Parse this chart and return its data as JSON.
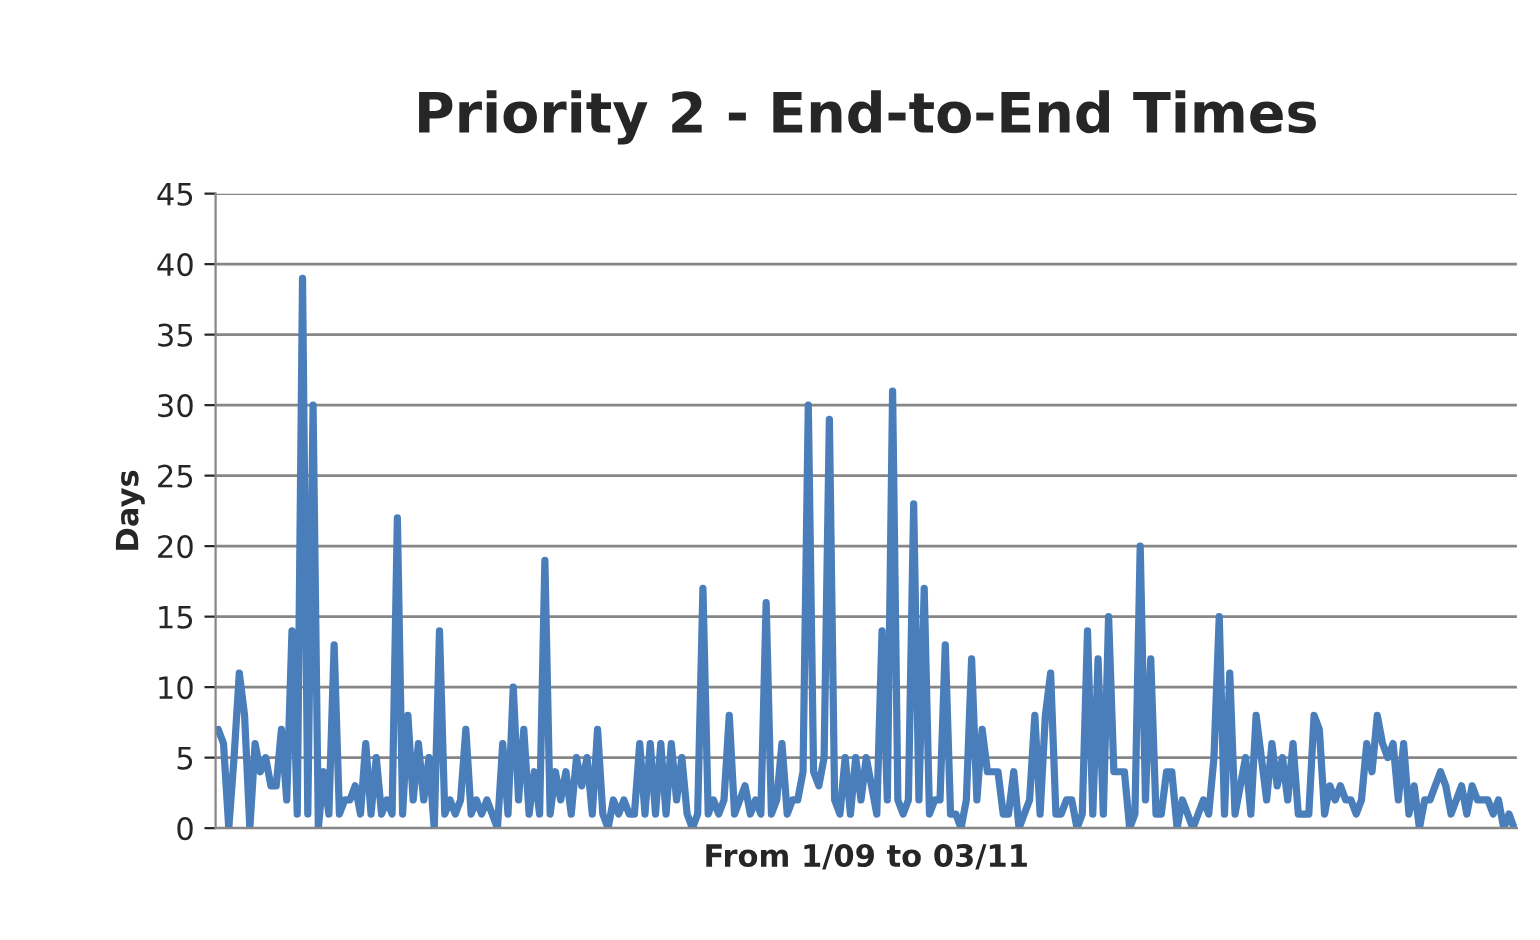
{
  "chart_data": {
    "type": "line",
    "title": "Priority 2 - End-to-End Times",
    "xlabel": "From 1/09 to 03/11",
    "ylabel": "Days",
    "ylim": [
      0,
      45
    ],
    "yticks": [
      0,
      5,
      10,
      15,
      20,
      25,
      30,
      35,
      40,
      45
    ],
    "grid": "y",
    "legend": false,
    "marker": "none",
    "line_style": "solid",
    "categories": [
      null,
      null,
      null,
      null,
      null,
      null,
      null,
      null,
      null,
      null,
      null,
      null,
      null,
      null,
      null,
      null,
      null,
      null,
      null,
      null,
      null,
      null,
      null,
      null,
      null,
      null,
      null,
      null,
      null,
      null,
      null,
      null,
      null,
      null,
      null,
      null,
      null,
      null,
      null,
      null,
      null,
      null,
      null,
      null,
      null,
      null,
      null,
      null,
      null,
      null,
      null,
      null,
      null,
      null,
      null,
      null,
      null,
      null,
      null,
      null,
      null,
      null,
      null,
      null,
      null,
      null,
      null,
      null,
      null,
      null,
      null,
      null,
      null,
      null,
      null,
      null,
      null,
      null,
      null,
      null,
      null,
      null,
      null,
      null,
      null,
      null,
      null,
      null,
      null,
      null,
      null,
      null,
      null,
      null,
      null,
      null,
      null,
      null,
      null,
      null,
      null,
      null,
      null,
      null,
      null,
      null,
      null,
      null,
      null,
      null,
      null,
      null,
      null,
      null,
      null,
      null,
      null,
      null,
      null,
      null,
      null,
      null,
      null,
      null,
      null,
      null,
      null,
      null,
      null,
      null,
      null,
      null,
      null,
      null,
      null,
      null,
      null,
      null,
      null,
      null,
      null,
      null,
      null,
      null,
      null,
      null,
      null,
      null,
      null,
      null,
      null,
      null,
      null,
      null,
      null,
      null,
      null,
      null,
      null,
      null,
      null,
      null,
      null,
      null,
      null,
      null,
      null,
      null,
      null,
      null,
      null,
      null,
      null,
      null,
      null,
      null,
      null,
      null,
      null,
      null,
      null,
      null,
      null,
      null,
      null,
      null,
      null,
      null,
      null,
      null,
      null,
      null,
      null,
      null,
      null,
      null,
      null,
      null,
      null,
      null,
      null,
      null,
      null,
      null,
      null,
      null,
      null,
      null,
      null,
      null,
      null,
      null,
      null,
      null,
      null,
      null,
      null,
      null,
      null,
      null,
      null,
      null,
      null,
      null,
      null,
      null,
      null,
      null,
      null,
      null,
      null,
      null,
      null,
      null,
      null,
      null,
      null,
      null,
      null,
      null,
      null,
      null,
      null,
      null,
      null,
      null,
      null
    ],
    "series": [
      {
        "color": "#4a7ebb",
        "values": [
          7,
          6,
          0,
          5,
          11,
          8,
          0,
          6,
          4,
          5,
          3,
          3,
          7,
          2,
          14,
          1,
          39,
          1,
          30,
          0,
          4,
          1,
          13,
          1,
          2,
          2,
          3,
          1,
          6,
          1,
          5,
          1,
          2,
          1,
          22,
          1,
          8,
          2,
          6,
          2,
          5,
          0,
          14,
          1,
          2,
          1,
          2,
          7,
          1,
          2,
          1,
          2,
          1,
          0,
          6,
          1,
          10,
          2,
          7,
          1,
          4,
          1,
          19,
          1,
          4,
          2,
          4,
          1,
          5,
          3,
          5,
          1,
          7,
          1,
          0,
          2,
          1,
          2,
          1,
          1,
          6,
          1,
          6,
          1,
          6,
          1,
          6,
          2,
          5,
          1,
          0,
          1,
          17,
          1,
          2,
          1,
          2,
          8,
          1,
          2,
          3,
          1,
          2,
          1,
          16,
          1,
          2,
          6,
          1,
          2,
          2,
          4,
          30,
          4,
          3,
          5,
          29,
          2,
          1,
          5,
          1,
          5,
          2,
          5,
          3,
          1,
          14,
          2,
          31,
          2,
          1,
          2,
          23,
          2,
          17,
          1,
          2,
          2,
          13,
          1,
          1,
          0,
          2,
          12,
          2,
          7,
          4,
          4,
          4,
          1,
          1,
          4,
          0,
          1,
          2,
          8,
          1,
          8,
          11,
          1,
          1,
          2,
          2,
          0,
          1,
          14,
          1,
          12,
          1,
          15,
          4,
          4,
          4,
          0,
          1,
          20,
          2,
          12,
          1,
          1,
          4,
          4,
          0,
          2,
          1,
          0,
          1,
          2,
          1,
          5,
          15,
          1,
          11,
          1,
          3,
          5,
          1,
          8,
          5,
          2,
          6,
          3,
          5,
          2,
          6,
          1,
          1,
          1,
          8,
          7,
          1,
          3,
          2,
          3,
          2,
          2,
          1,
          2,
          6,
          4,
          8,
          6,
          5,
          6,
          2,
          6,
          1,
          3,
          0,
          2,
          2,
          3,
          4,
          3,
          1,
          2,
          3,
          1,
          3,
          2,
          2,
          2,
          1,
          2,
          0,
          1,
          0
        ]
      }
    ]
  }
}
